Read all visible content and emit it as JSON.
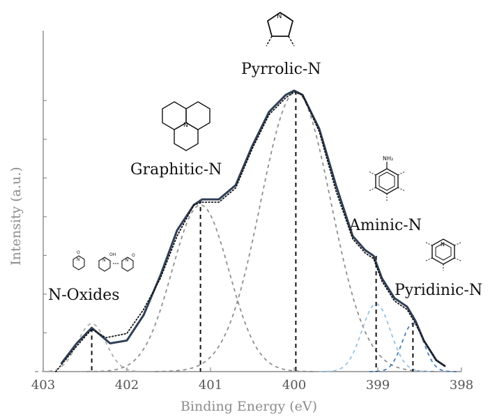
{
  "chart_data": {
    "type": "line",
    "title": "",
    "xlabel": "Binding Energy (eV)",
    "ylabel": "Intensity (a.u.)",
    "x_reversed": true,
    "xlim": [
      403,
      398
    ],
    "ylim": [
      0,
      1
    ],
    "xticks": [
      "403",
      "402",
      "401",
      "400",
      "399",
      "398"
    ],
    "grid": false,
    "colors": {
      "envelope": "#2f3f56",
      "raw": "#111111",
      "n_oxides": "#a9a9a9",
      "graphitic": "#8a8a8a",
      "pyrrolic": "#888888",
      "aminic": "#8fbfe6",
      "pyridinic": "#3f79b5",
      "marker": "#111111"
    },
    "components": [
      {
        "label": "N-Oxides",
        "center": 402.42,
        "amplitude": 0.17,
        "sigma": 0.17
      },
      {
        "label": "Graphitic-N",
        "center": 401.12,
        "amplitude": 0.59,
        "sigma": 0.34
      },
      {
        "label": "Pyrrolic-N",
        "center": 399.98,
        "amplitude": 0.99,
        "sigma": 0.42
      },
      {
        "label": "Aminic-N",
        "center": 399.02,
        "amplitude": 0.24,
        "sigma": 0.17
      },
      {
        "label": "Pyridinic-N",
        "center": 398.58,
        "amplitude": 0.17,
        "sigma": 0.13
      }
    ],
    "envelope": {
      "x": [
        402.78,
        402.6,
        402.42,
        402.2,
        402.0,
        401.8,
        401.6,
        401.4,
        401.2,
        401.1,
        400.9,
        400.7,
        400.5,
        400.3,
        400.1,
        400.0,
        399.9,
        399.7,
        399.5,
        399.3,
        399.15,
        399.05,
        398.95,
        398.8,
        398.65,
        398.55,
        398.45,
        398.3,
        398.2
      ],
      "values": [
        0.03,
        0.1,
        0.155,
        0.1,
        0.11,
        0.2,
        0.34,
        0.5,
        0.59,
        0.61,
        0.61,
        0.66,
        0.8,
        0.92,
        0.98,
        0.995,
        0.98,
        0.86,
        0.66,
        0.48,
        0.43,
        0.41,
        0.33,
        0.26,
        0.23,
        0.18,
        0.11,
        0.04,
        0.02
      ]
    },
    "raw": {
      "x": [
        402.85,
        402.6,
        402.42,
        402.25,
        402.0,
        401.8,
        401.6,
        401.4,
        401.2,
        401.1,
        400.9,
        400.7,
        400.5,
        400.3,
        400.1,
        400.0,
        399.9,
        399.7,
        399.5,
        399.3,
        399.15,
        399.05,
        398.95,
        398.8,
        398.65,
        398.55,
        398.45,
        398.3,
        398.2
      ],
      "values": [
        0.0,
        0.09,
        0.15,
        0.12,
        0.135,
        0.22,
        0.33,
        0.48,
        0.59,
        0.6,
        0.6,
        0.65,
        0.79,
        0.91,
        0.97,
        0.99,
        0.98,
        0.85,
        0.64,
        0.47,
        0.42,
        0.4,
        0.32,
        0.25,
        0.22,
        0.17,
        0.11,
        0.04,
        0.02
      ]
    },
    "markers": [
      {
        "label": "N-Oxides",
        "x": 402.42,
        "top": 0.155
      },
      {
        "label": "Graphitic-N",
        "x": 401.12,
        "top": 0.61
      },
      {
        "label": "Pyrrolic-N",
        "x": 399.98,
        "top": 0.995
      },
      {
        "label": "Aminic-N",
        "x": 399.02,
        "top": 0.41
      },
      {
        "label": "Pyridinic-N",
        "x": 398.58,
        "top": 0.2
      }
    ],
    "annotations": {
      "n_oxides_label": "N-Oxides",
      "graphitic_label": "Graphitic-N",
      "pyrrolic_label": "Pyrrolic-N",
      "aminic_label": "Aminic-N",
      "pyridinic_label": "Pyridinic-N",
      "n_symbol": "N",
      "nh2_symbol": "NH₂",
      "o_symbol": "O",
      "oh_symbol": "OH"
    },
    "structure_icons": [
      "pyrroline-ring-icon",
      "graphitic-fused-ring-icon",
      "aniline-ring-icon",
      "pyridine-ring-icon",
      "n-oxide-ring-icons"
    ]
  }
}
